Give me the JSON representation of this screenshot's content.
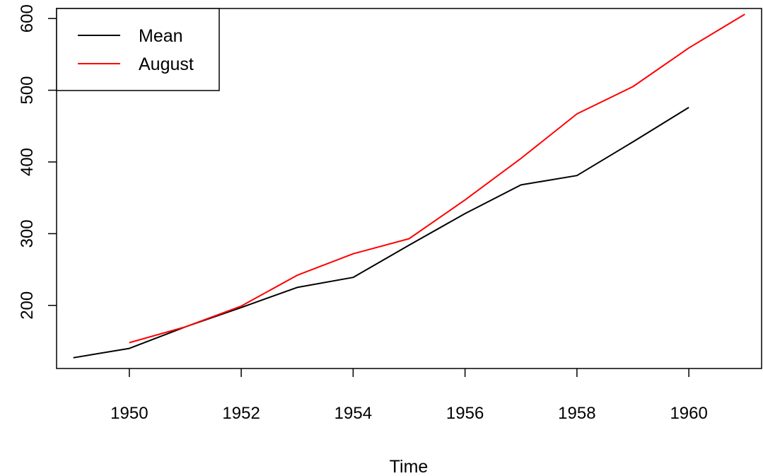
{
  "chart_data": {
    "type": "line",
    "title": "",
    "xlabel": "Time",
    "ylabel": "",
    "xlim": [
      1948.7,
      1961.3
    ],
    "ylim": [
      112,
      614
    ],
    "x_ticks": [
      1950,
      1952,
      1954,
      1956,
      1958,
      1960
    ],
    "y_ticks": [
      200,
      300,
      400,
      500,
      600
    ],
    "grid": false,
    "legend": {
      "position": "top-left",
      "entries": [
        "Mean",
        "August"
      ]
    },
    "series": [
      {
        "name": "Mean",
        "color": "#000000",
        "x": [
          1949,
          1950,
          1951,
          1952,
          1953,
          1954,
          1955,
          1956,
          1957,
          1958,
          1959,
          1960
        ],
        "y": [
          127,
          140,
          170,
          197,
          225,
          239,
          284,
          328,
          368,
          381,
          428,
          476
        ]
      },
      {
        "name": "August",
        "color": "#ff0000",
        "x": [
          1950,
          1951,
          1952,
          1953,
          1954,
          1955,
          1956,
          1957,
          1958,
          1959,
          1960,
          1961
        ],
        "y": [
          148,
          170,
          199,
          242,
          272,
          293,
          347,
          405,
          467,
          505,
          559,
          606
        ]
      }
    ]
  }
}
